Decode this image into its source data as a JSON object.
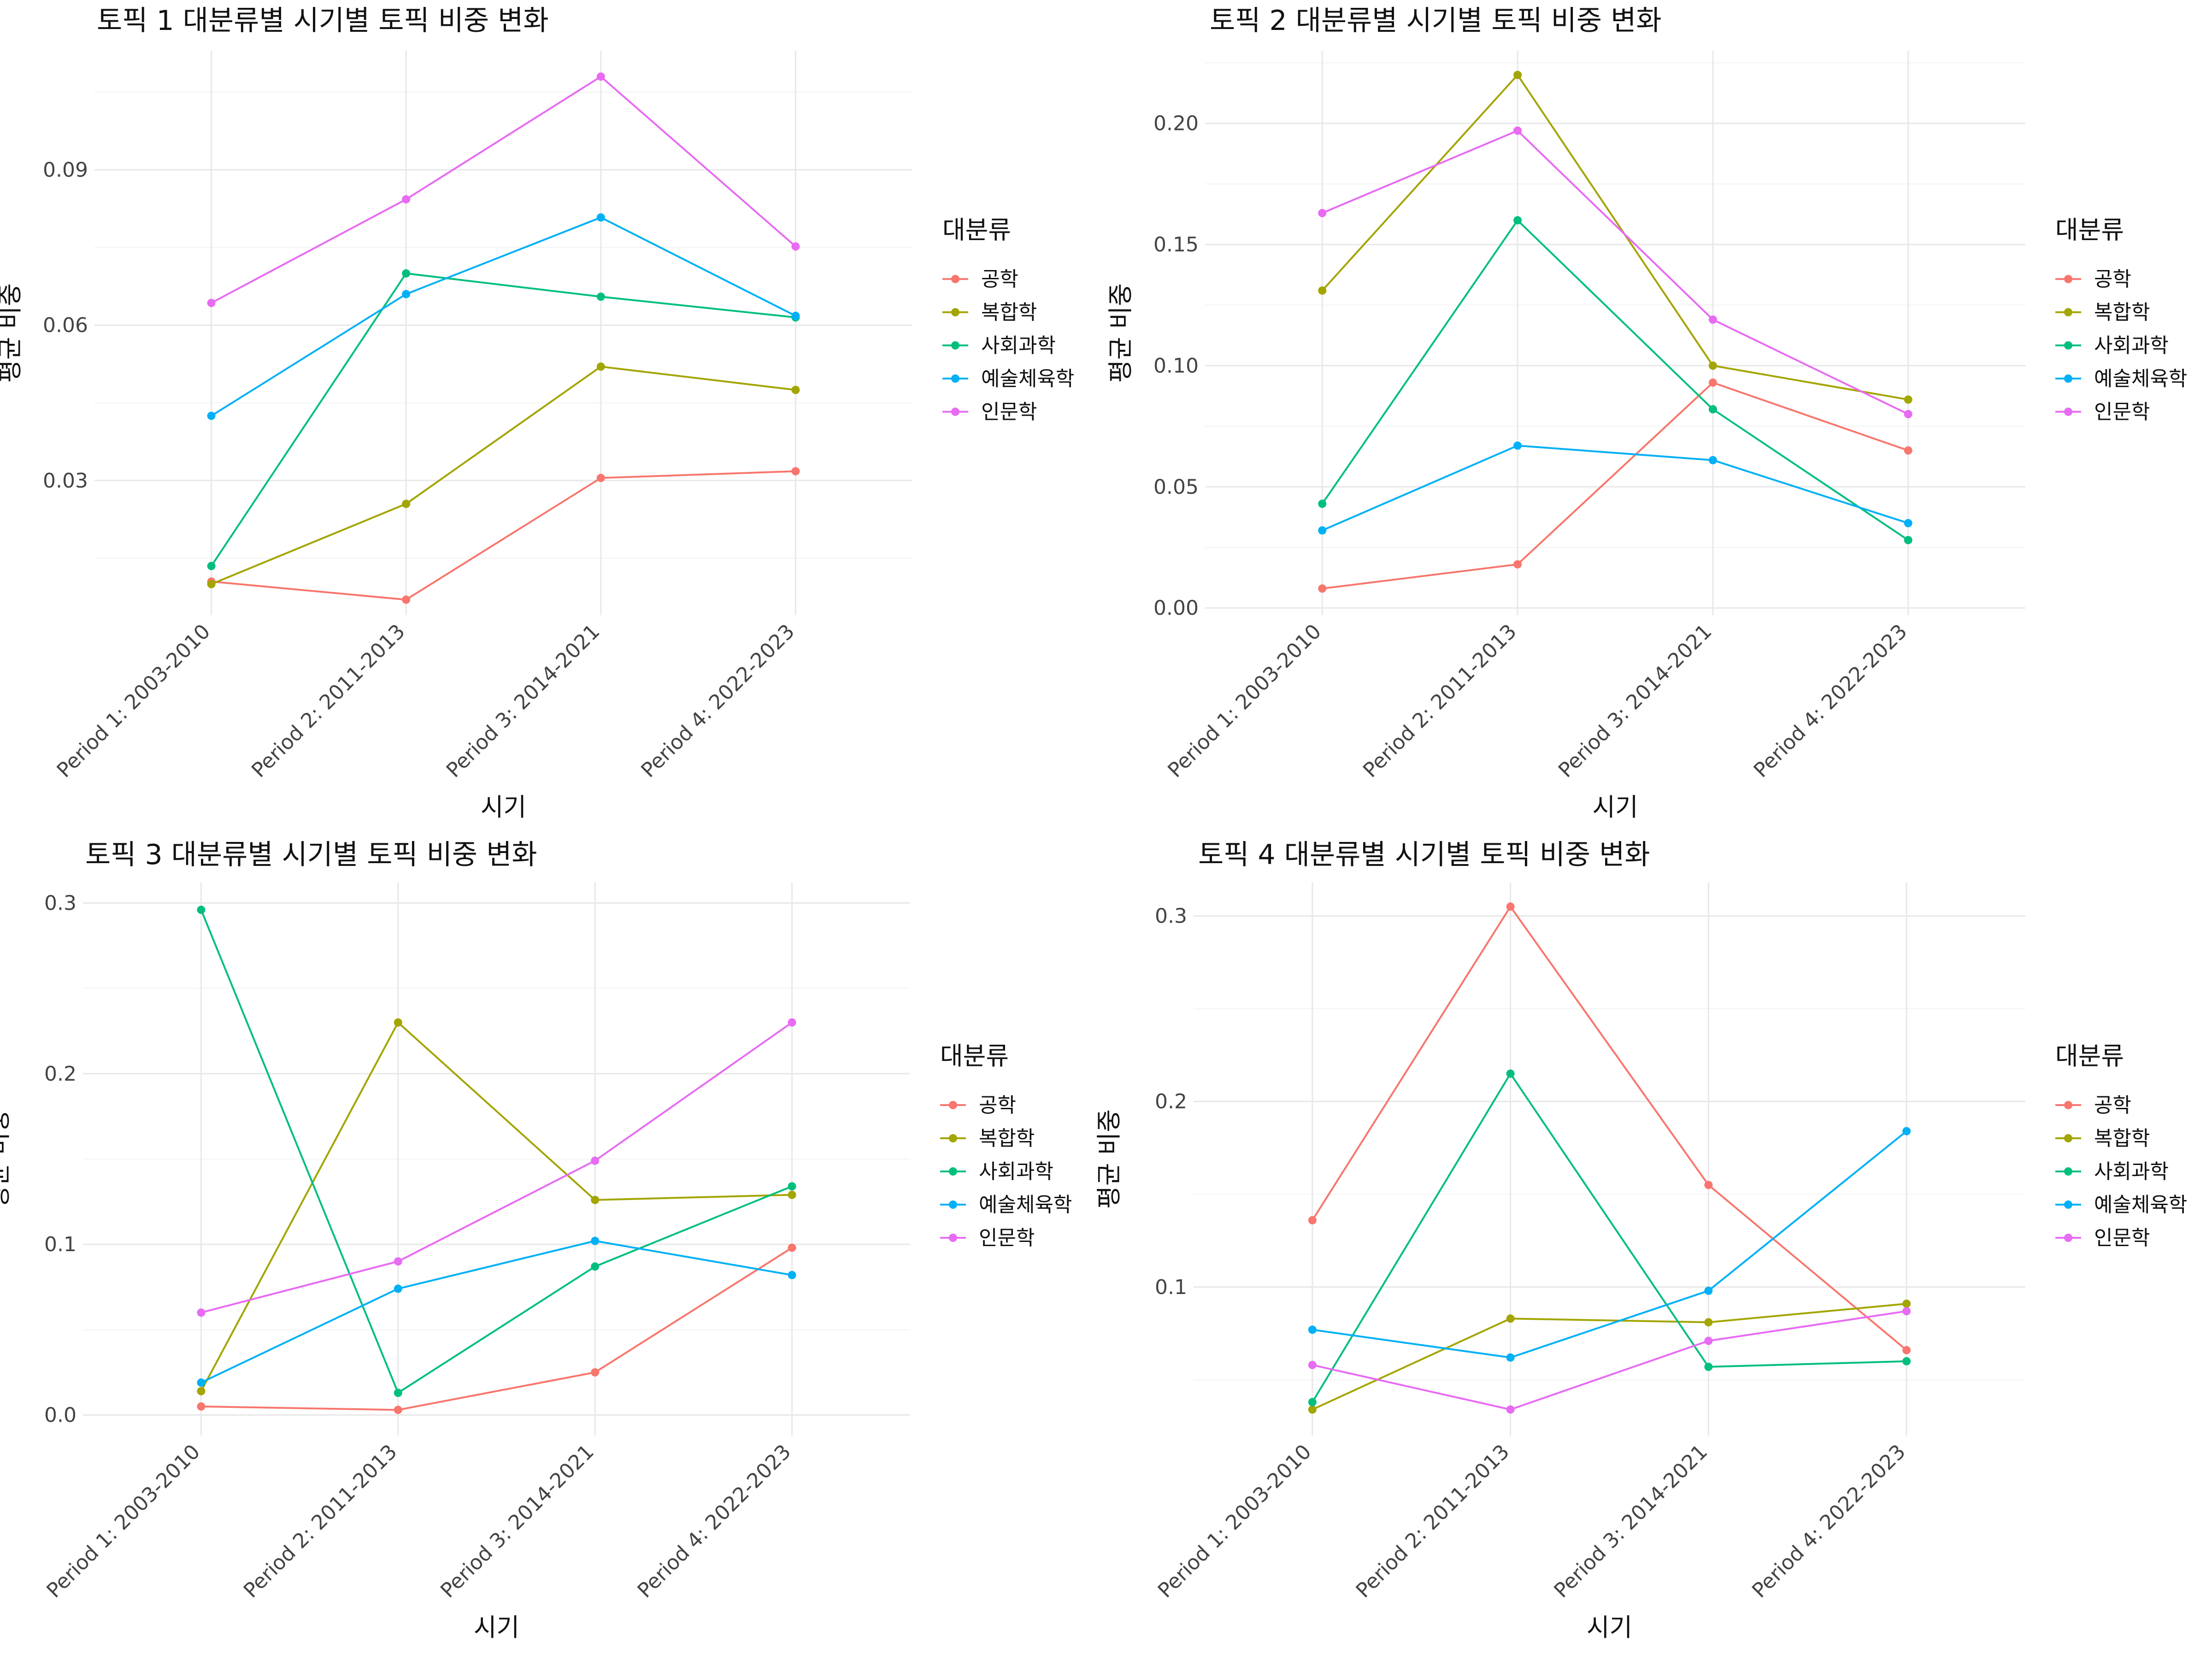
{
  "chart_data": [
    {
      "type": "line",
      "title": "토픽 1 대분류별 시기별 토픽 비중 변화",
      "xlabel": "시기",
      "ylabel": "평균 비중",
      "categories": [
        "Period 1: 2003-2010",
        "Period 2: 2011-2013",
        "Period 3: 2014-2021",
        "Period 4: 2022-2023"
      ],
      "ylim": [
        0.004,
        0.113
      ],
      "yticks": [
        0.03,
        0.06,
        0.09
      ],
      "ytick_labels": [
        "0.03",
        "0.06",
        "0.09"
      ],
      "legend_title": "대분류",
      "legend_position": "right",
      "series": [
        {
          "name": "공학",
          "color": "#F8766D",
          "values": [
            0.0105,
            0.007,
            0.0305,
            0.0318
          ]
        },
        {
          "name": "복합학",
          "color": "#A3A500",
          "values": [
            0.01,
            0.0255,
            0.052,
            0.0475
          ]
        },
        {
          "name": "사회과학",
          "color": "#00BF7D",
          "values": [
            0.0135,
            0.07,
            0.0655,
            0.0615
          ]
        },
        {
          "name": "예술체육학",
          "color": "#00B0F6",
          "values": [
            0.0425,
            0.066,
            0.0808,
            0.0618
          ]
        },
        {
          "name": "인문학",
          "color": "#E76BF3",
          "values": [
            0.0643,
            0.0843,
            0.108,
            0.0752
          ]
        }
      ]
    },
    {
      "type": "line",
      "title": "토픽 2 대분류별 시기별 토픽 비중 변화",
      "xlabel": "시기",
      "ylabel": "평균 비중",
      "categories": [
        "Period 1: 2003-2010",
        "Period 2: 2011-2013",
        "Period 3: 2014-2021",
        "Period 4: 2022-2023"
      ],
      "ylim": [
        -0.003,
        0.23
      ],
      "yticks": [
        0.0,
        0.05,
        0.1,
        0.15,
        0.2
      ],
      "ytick_labels": [
        "0.00",
        "0.05",
        "0.10",
        "0.15",
        "0.20"
      ],
      "legend_title": "대분류",
      "legend_position": "right",
      "series": [
        {
          "name": "공학",
          "color": "#F8766D",
          "values": [
            0.008,
            0.018,
            0.093,
            0.065
          ]
        },
        {
          "name": "복합학",
          "color": "#A3A500",
          "values": [
            0.131,
            0.22,
            0.1,
            0.086
          ]
        },
        {
          "name": "사회과학",
          "color": "#00BF7D",
          "values": [
            0.043,
            0.16,
            0.082,
            0.028
          ]
        },
        {
          "name": "예술체육학",
          "color": "#00B0F6",
          "values": [
            0.032,
            0.067,
            0.061,
            0.035
          ]
        },
        {
          "name": "인문학",
          "color": "#E76BF3",
          "values": [
            0.163,
            0.197,
            0.119,
            0.08
          ]
        }
      ]
    },
    {
      "type": "line",
      "title": "토픽 3 대분류별 시기별 토픽 비중 변화",
      "xlabel": "시기",
      "ylabel": "평균 비중",
      "categories": [
        "Period 1: 2003-2010",
        "Period 2: 2011-2013",
        "Period 3: 2014-2021",
        "Period 4: 2022-2023"
      ],
      "ylim": [
        -0.012,
        0.312
      ],
      "yticks": [
        0.0,
        0.1,
        0.2,
        0.3
      ],
      "ytick_labels": [
        "0.0",
        "0.1",
        "0.2",
        "0.3"
      ],
      "legend_title": "대분류",
      "legend_position": "right",
      "series": [
        {
          "name": "공학",
          "color": "#F8766D",
          "values": [
            0.005,
            0.003,
            0.025,
            0.098
          ]
        },
        {
          "name": "복합학",
          "color": "#A3A500",
          "values": [
            0.014,
            0.23,
            0.126,
            0.129
          ]
        },
        {
          "name": "사회과학",
          "color": "#00BF7D",
          "values": [
            0.296,
            0.013,
            0.087,
            0.134
          ]
        },
        {
          "name": "예술체육학",
          "color": "#00B0F6",
          "values": [
            0.019,
            0.074,
            0.102,
            0.082
          ]
        },
        {
          "name": "인문학",
          "color": "#E76BF3",
          "values": [
            0.06,
            0.09,
            0.149,
            0.23
          ]
        }
      ]
    },
    {
      "type": "line",
      "title": "토픽 4 대분류별 시기별 토픽 비중 변화",
      "xlabel": "시기",
      "ylabel": "평균 비중",
      "categories": [
        "Period 1: 2003-2010",
        "Period 2: 2011-2013",
        "Period 3: 2014-2021",
        "Period 4: 2022-2023"
      ],
      "ylim": [
        0.02,
        0.318
      ],
      "yticks": [
        0.1,
        0.2,
        0.3
      ],
      "ytick_labels": [
        "0.1",
        "0.2",
        "0.3"
      ],
      "legend_title": "대분류",
      "legend_position": "right",
      "series": [
        {
          "name": "공학",
          "color": "#F8766D",
          "values": [
            0.136,
            0.305,
            0.155,
            0.066
          ]
        },
        {
          "name": "복합학",
          "color": "#A3A500",
          "values": [
            0.034,
            0.083,
            0.081,
            0.091
          ]
        },
        {
          "name": "사회과학",
          "color": "#00BF7D",
          "values": [
            0.038,
            0.215,
            0.057,
            0.06
          ]
        },
        {
          "name": "예술체육학",
          "color": "#00B0F6",
          "values": [
            0.077,
            0.062,
            0.098,
            0.184
          ]
        },
        {
          "name": "인문학",
          "color": "#E76BF3",
          "values": [
            0.058,
            0.034,
            0.071,
            0.087
          ]
        }
      ]
    }
  ]
}
